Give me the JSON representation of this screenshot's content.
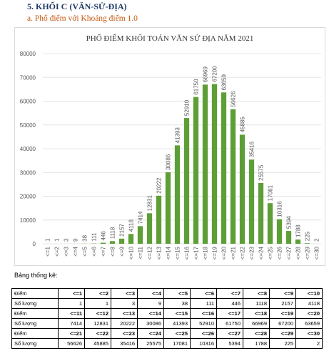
{
  "heading": "5.  KHỐI C (VĂN-SỬ-ĐỊA)",
  "subheading": "a.  Phổ điểm với Khoảng điểm 1.0",
  "chart_data": {
    "type": "bar",
    "title": "PHỔ ĐIỂM KHỐI TOÁN VĂN SỬ ĐỊA NĂM 2021",
    "categories": [
      "<=1",
      "<=2",
      "<=3",
      "<=4",
      "<=5",
      "<=6",
      "<=7",
      "<=8",
      "<=9",
      "<=10",
      "<=11",
      "<=12",
      "<=13",
      "<=14",
      "<=15",
      "<=16",
      "<=17",
      "<=18",
      "<=19",
      "<=20",
      "<=21",
      "<=22",
      "<=23",
      "<=24",
      "<=25",
      "<=26",
      "<=27",
      "<=28",
      "<=29",
      "<=30"
    ],
    "values": [
      1,
      1,
      3,
      9,
      38,
      111,
      446,
      1118,
      2157,
      4118,
      7414,
      12831,
      20222,
      30086,
      41393,
      52910,
      61750,
      66969,
      67200,
      63659,
      56626,
      45885,
      35416,
      25575,
      17081,
      10316,
      5394,
      1788,
      225,
      2
    ],
    "color": "#5e9e36",
    "ylim": [
      0,
      80000
    ],
    "yticks": [
      0,
      10000,
      20000,
      30000,
      40000,
      50000,
      60000,
      70000,
      80000
    ],
    "grid": true
  },
  "table_caption": "Bảng thống kê:",
  "table": {
    "rows": [
      [
        "Điểm",
        "<=1",
        "<=2",
        "<=3",
        "<=4",
        "<=5",
        "<=6",
        "<=7",
        "<=8",
        "<=9",
        "<=10"
      ],
      [
        "Số lượng",
        1,
        1,
        3,
        9,
        38,
        111,
        446,
        1118,
        2157,
        4118
      ],
      [
        "Điểm",
        "<=11",
        "<=12",
        "<=13",
        "<=14",
        "<=15",
        "<=16",
        "<=17",
        "<=18",
        "<=19",
        "<=20"
      ],
      [
        "Số lượng",
        7414,
        12831,
        20222,
        30086,
        41393,
        52910,
        61750,
        66969,
        67200,
        63659
      ],
      [
        "Điểm",
        "<=21",
        "<=22",
        "<=23",
        "<=24",
        "<=25",
        "<=26",
        "<=27",
        "<=28",
        "<=29",
        "<=30"
      ],
      [
        "Số lượng",
        56626,
        45885,
        35416,
        25575,
        17081,
        10316,
        5394,
        1788,
        225,
        2
      ]
    ]
  }
}
